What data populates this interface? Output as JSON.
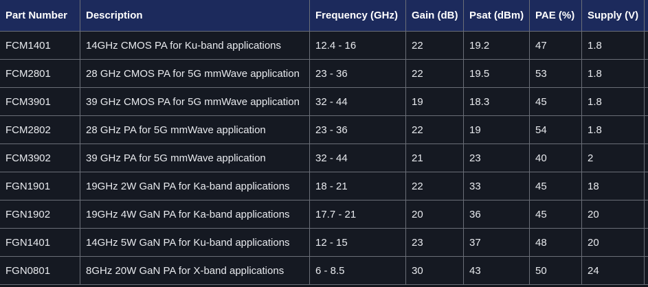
{
  "table": {
    "header": [
      "Part Number",
      "Description",
      "Frequency (GHz)",
      "Gain (dB)",
      "Psat (dBm)",
      "PAE (%)",
      "Supply (V)"
    ],
    "rows": [
      [
        "FCM1401",
        "14GHz CMOS PA for Ku-band applications",
        "12.4 - 16",
        "22",
        "19.2",
        "47",
        "1.8"
      ],
      [
        "FCM2801",
        "28 GHz CMOS PA for 5G mmWave application",
        "23 - 36",
        "22",
        "19.5",
        "53",
        "1.8"
      ],
      [
        "FCM3901",
        "39 GHz CMOS PA for 5G mmWave application",
        "32 - 44",
        "19",
        "18.3",
        "45",
        "1.8"
      ],
      [
        "FCM2802",
        "28 GHz PA for 5G mmWave application",
        "23 - 36",
        "22",
        "19",
        "54",
        "1.8"
      ],
      [
        "FCM3902",
        "39 GHz PA for 5G mmWave application",
        "32 - 44",
        "21",
        "23",
        "40",
        "2"
      ],
      [
        "FGN1901",
        "19GHz 2W GaN PA for Ka-band applications",
        "18 - 21",
        "22",
        "33",
        "45",
        "18"
      ],
      [
        "FGN1902",
        "19GHz 4W GaN PA for Ka-band applications",
        "17.7 - 21",
        "20",
        "36",
        "45",
        "20"
      ],
      [
        "FGN1401",
        "14GHz 5W GaN PA for Ku-band applications",
        "12 - 15",
        "23",
        "37",
        "48",
        "20"
      ],
      [
        "FGN0801",
        "8GHz 20W GaN PA for X-band applications",
        "6 - 8.5",
        "30",
        "43",
        "50",
        "24"
      ]
    ]
  }
}
